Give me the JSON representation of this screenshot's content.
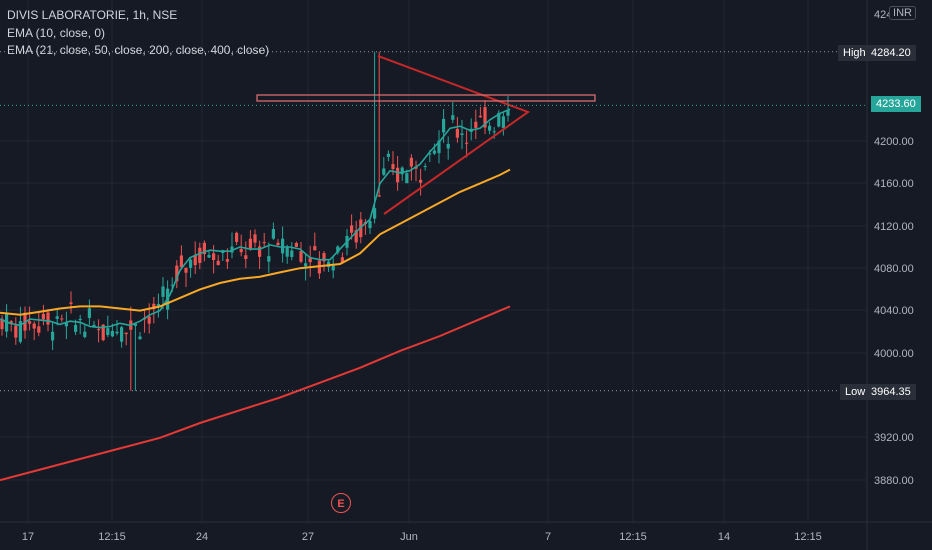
{
  "legend": {
    "title": "DIVIS LABORATORIE, 1h, NSE",
    "ema1": "EMA (10, close, 0)",
    "ema2": "EMA (21, close, 50, close, 200, close, 400, close)"
  },
  "currency": "INR",
  "price_axis_top_label": "4240.00",
  "earnings_marker": "E",
  "tags": {
    "high_label": "High",
    "high_value": "4284.20",
    "last_value": "4233.60",
    "low_label": "Low",
    "low_value": "3964.35"
  },
  "colors": {
    "background": "#161a25",
    "up": "#26a69a",
    "down": "#ef5350",
    "ema10": "#26a69a",
    "ema21": "#f9a825",
    "ema_long": "#e53935",
    "trendline": "#c62828",
    "hline": "#e57373"
  },
  "chart_data": {
    "type": "candlestick",
    "y_ticks": [
      "3880.00",
      "3920.00",
      "4000.00",
      "4040.00",
      "4080.00",
      "4120.00",
      "4160.00",
      "4200.00"
    ],
    "x_ticks": [
      "17",
      "12:15",
      "24",
      "27",
      "Jun",
      "7",
      "12:15",
      "14",
      "12:15"
    ],
    "ylim": [
      3860,
      4300
    ],
    "series": [
      {
        "name": "EMA (10, close, 0)",
        "points": [
          [
            0,
            4032
          ],
          [
            10,
            4028
          ],
          [
            20,
            4026
          ],
          [
            30,
            4032
          ],
          [
            40,
            4031
          ],
          [
            50,
            4030
          ],
          [
            60,
            4027
          ],
          [
            70,
            4030
          ],
          [
            80,
            4029
          ],
          [
            90,
            4025
          ],
          [
            100,
            4024
          ],
          [
            110,
            4025
          ],
          [
            120,
            4028
          ],
          [
            130,
            4026
          ],
          [
            140,
            4030
          ],
          [
            150,
            4036
          ],
          [
            160,
            4040
          ],
          [
            170,
            4055
          ],
          [
            180,
            4078
          ],
          [
            190,
            4090
          ],
          [
            200,
            4094
          ],
          [
            210,
            4097
          ],
          [
            220,
            4096
          ],
          [
            230,
            4096
          ],
          [
            240,
            4100
          ],
          [
            250,
            4098
          ],
          [
            260,
            4098
          ],
          [
            270,
            4102
          ],
          [
            280,
            4100
          ],
          [
            290,
            4100
          ],
          [
            300,
            4098
          ],
          [
            310,
            4090
          ],
          [
            320,
            4088
          ],
          [
            330,
            4088
          ],
          [
            340,
            4098
          ],
          [
            350,
            4108
          ],
          [
            360,
            4118
          ],
          [
            370,
            4126
          ],
          [
            380,
            4160
          ],
          [
            390,
            4172
          ],
          [
            400,
            4170
          ],
          [
            410,
            4172
          ],
          [
            420,
            4178
          ],
          [
            430,
            4190
          ],
          [
            440,
            4200
          ],
          [
            450,
            4212
          ],
          [
            460,
            4214
          ],
          [
            470,
            4210
          ],
          [
            480,
            4212
          ],
          [
            490,
            4220
          ],
          [
            500,
            4226
          ],
          [
            510,
            4230
          ]
        ]
      },
      {
        "name": "EMA (21)",
        "points": [
          [
            0,
            4038
          ],
          [
            20,
            4036
          ],
          [
            40,
            4039
          ],
          [
            60,
            4042
          ],
          [
            80,
            4044
          ],
          [
            100,
            4044
          ],
          [
            120,
            4042
          ],
          [
            140,
            4040
          ],
          [
            160,
            4044
          ],
          [
            180,
            4052
          ],
          [
            200,
            4060
          ],
          [
            220,
            4066
          ],
          [
            240,
            4070
          ],
          [
            260,
            4072
          ],
          [
            280,
            4076
          ],
          [
            300,
            4080
          ],
          [
            320,
            4082
          ],
          [
            340,
            4084
          ],
          [
            360,
            4094
          ],
          [
            380,
            4112
          ],
          [
            400,
            4122
          ],
          [
            420,
            4132
          ],
          [
            440,
            4142
          ],
          [
            460,
            4152
          ],
          [
            480,
            4160
          ],
          [
            500,
            4168
          ],
          [
            510,
            4173
          ]
        ]
      },
      {
        "name": "EMA (long)",
        "points": [
          [
            0,
            3880
          ],
          [
            40,
            3890
          ],
          [
            80,
            3900
          ],
          [
            120,
            3910
          ],
          [
            160,
            3920
          ],
          [
            200,
            3934
          ],
          [
            240,
            3946
          ],
          [
            280,
            3958
          ],
          [
            320,
            3972
          ],
          [
            360,
            3986
          ],
          [
            400,
            4002
          ],
          [
            440,
            4016
          ],
          [
            480,
            4032
          ],
          [
            510,
            4044
          ]
        ]
      }
    ],
    "annotations": {
      "high": 4284.2,
      "low": 3964.35,
      "last": 4233.6
    }
  }
}
